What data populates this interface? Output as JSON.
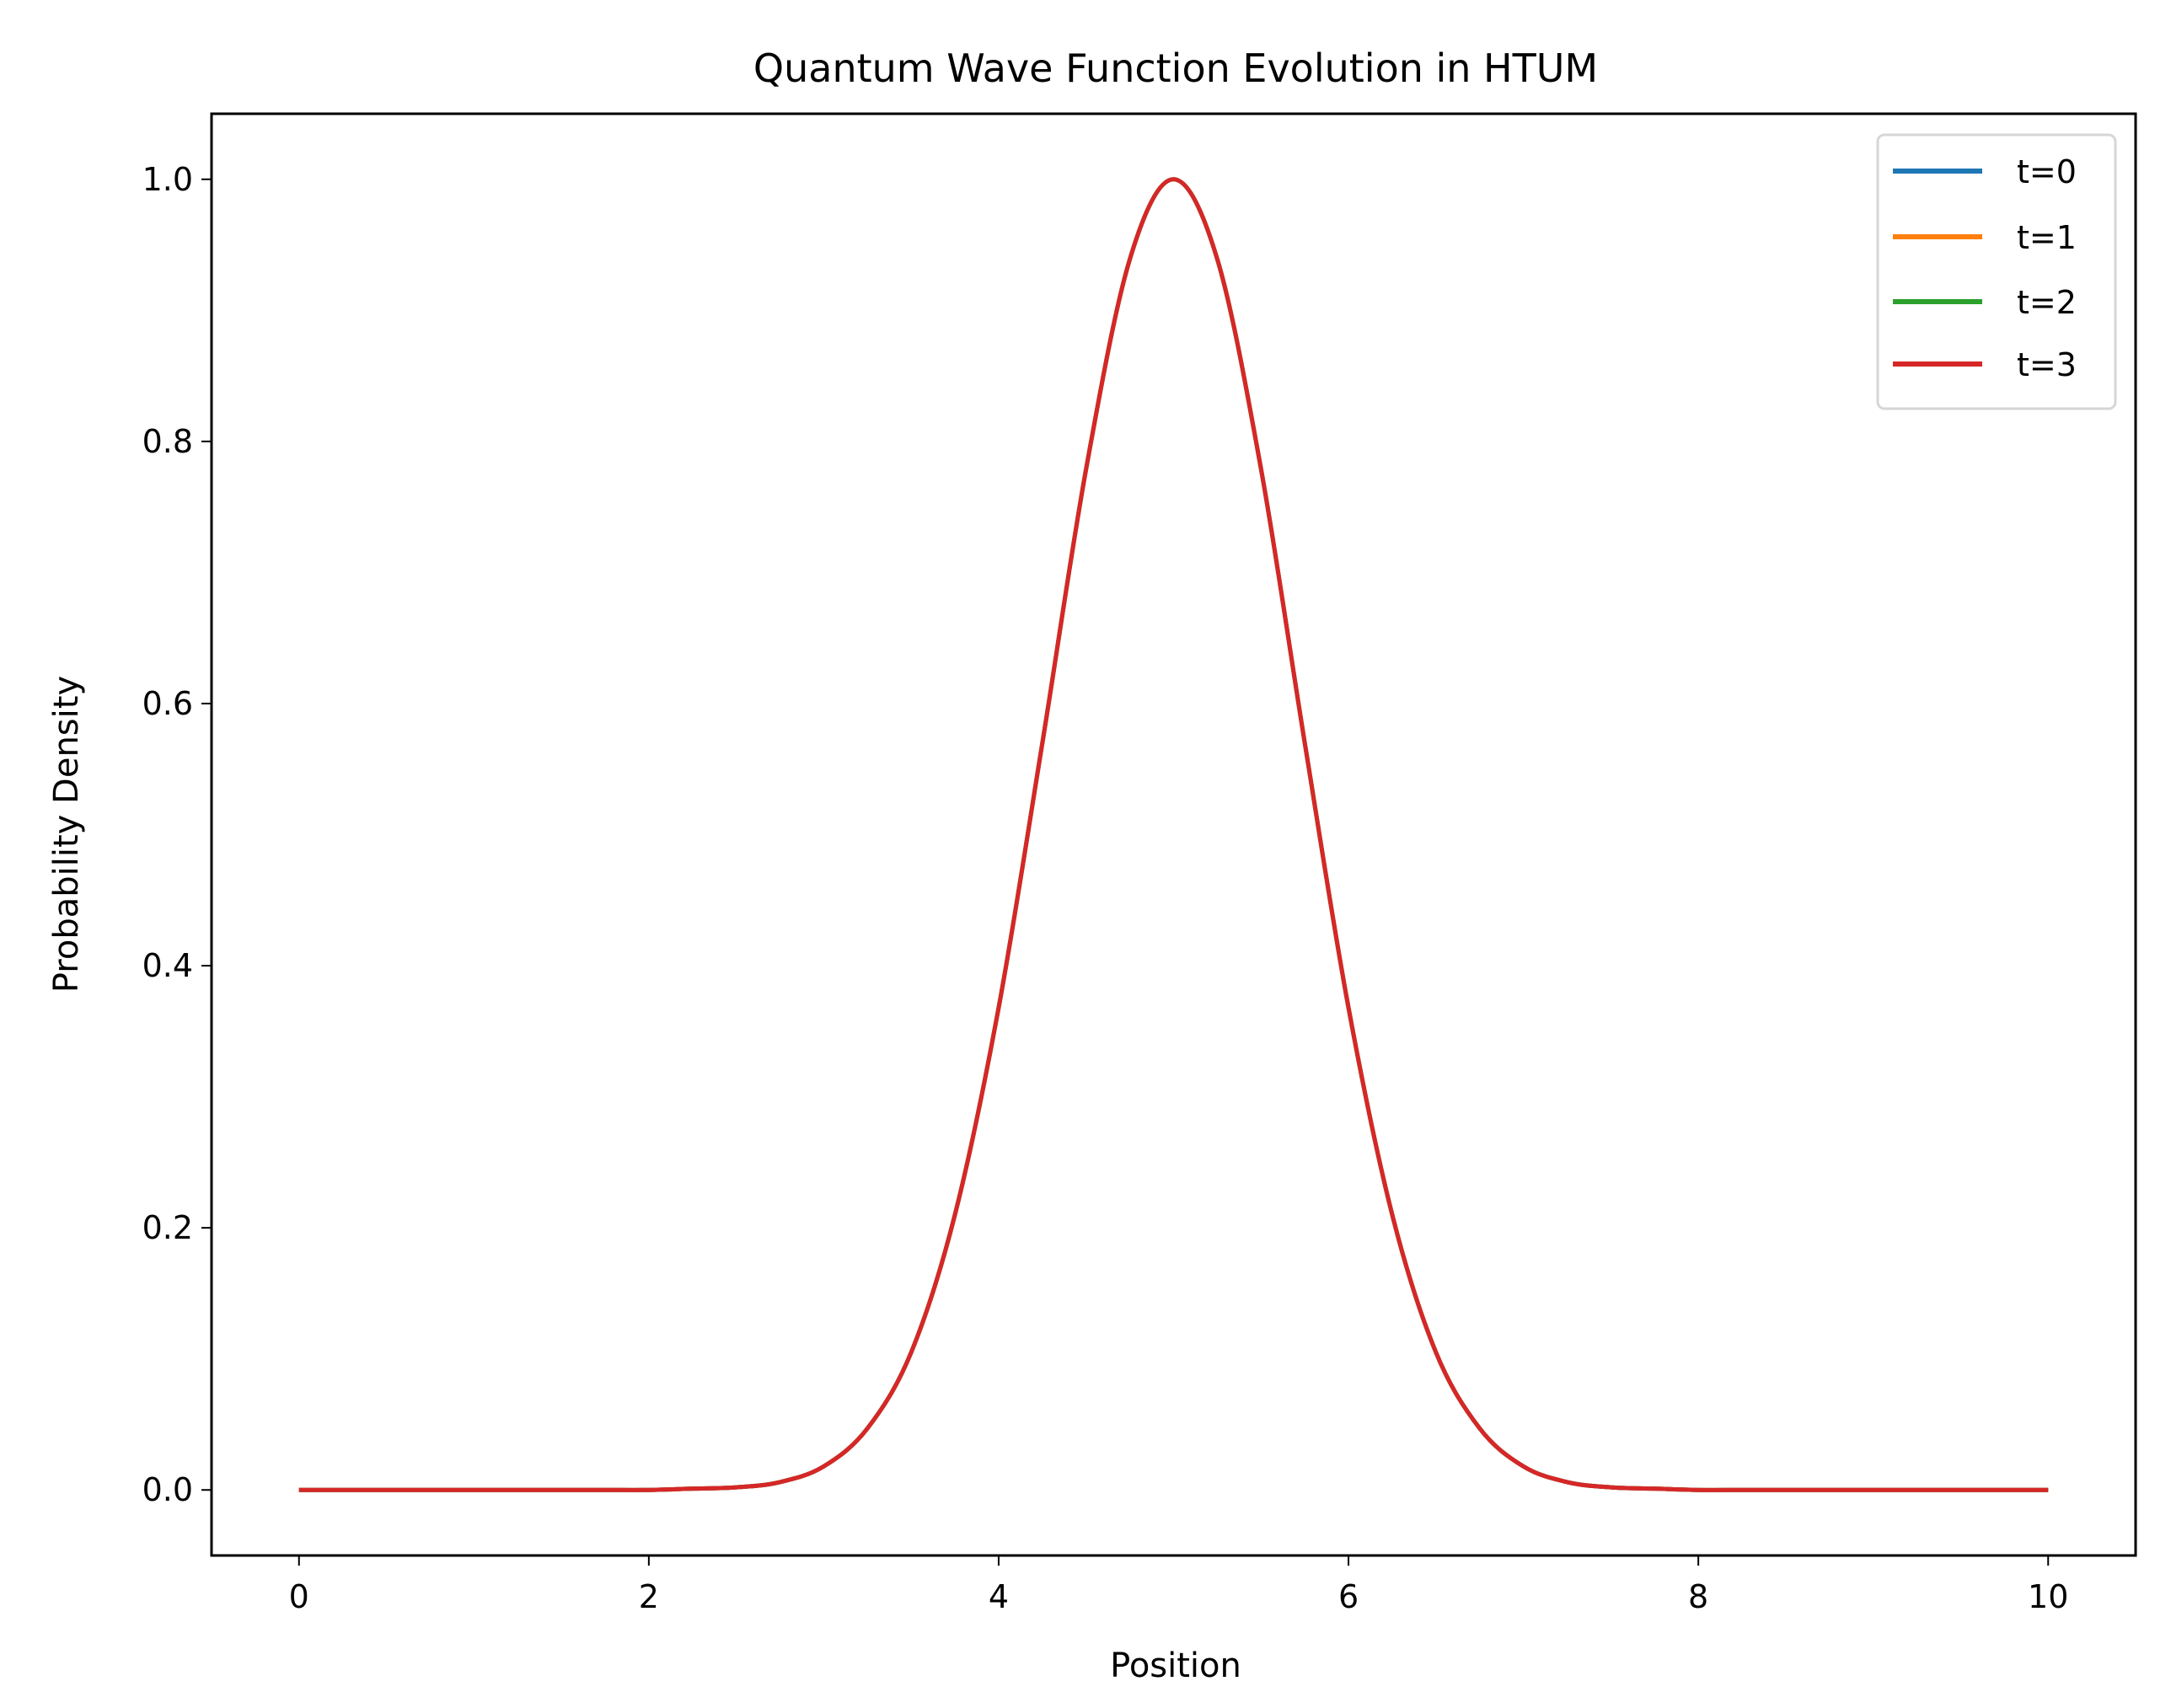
{
  "chart_data": {
    "type": "line",
    "title": "Quantum Wave Function Evolution in HTUM",
    "xlabel": "Position",
    "ylabel": "Probability Density",
    "xlim": [
      -0.5,
      10.5
    ],
    "ylim": [
      -0.05,
      1.05
    ],
    "xticks": [
      "0",
      "2",
      "4",
      "6",
      "8",
      "10"
    ],
    "yticks": [
      "0.0",
      "0.2",
      "0.4",
      "0.6",
      "0.8",
      "1.0"
    ],
    "grid": false,
    "legend_position": "top-right",
    "x": [
      0,
      0.25,
      0.5,
      0.75,
      1,
      1.25,
      1.5,
      1.75,
      2,
      2.25,
      2.5,
      2.75,
      3,
      3.25,
      3.5,
      3.75,
      4,
      4.25,
      4.5,
      4.75,
      5,
      5.25,
      5.5,
      5.75,
      6,
      6.25,
      6.5,
      6.75,
      7,
      7.25,
      7.5,
      7.75,
      8,
      8.25,
      8.5,
      8.75,
      9,
      9.25,
      9.5,
      9.75,
      10
    ],
    "series": [
      {
        "name": "t=0",
        "color": "#1f77b4",
        "values": [
          0,
          0,
          0,
          0,
          0,
          0,
          0,
          0,
          0,
          0.001,
          0.002,
          0.006,
          0.018,
          0.047,
          0.105,
          0.21,
          0.368,
          0.57,
          0.779,
          0.939,
          1,
          0.939,
          0.779,
          0.57,
          0.368,
          0.21,
          0.105,
          0.047,
          0.018,
          0.006,
          0.002,
          0.001,
          0,
          0,
          0,
          0,
          0,
          0,
          0,
          0,
          0
        ]
      },
      {
        "name": "t=1",
        "color": "#ff7f0e",
        "values": [
          0,
          0,
          0,
          0,
          0,
          0,
          0,
          0,
          0,
          0.001,
          0.002,
          0.006,
          0.018,
          0.047,
          0.105,
          0.21,
          0.368,
          0.57,
          0.779,
          0.939,
          1,
          0.939,
          0.779,
          0.57,
          0.368,
          0.21,
          0.105,
          0.047,
          0.018,
          0.006,
          0.002,
          0.001,
          0,
          0,
          0,
          0,
          0,
          0,
          0,
          0,
          0
        ]
      },
      {
        "name": "t=2",
        "color": "#2ca02c",
        "values": [
          0,
          0,
          0,
          0,
          0,
          0,
          0,
          0,
          0,
          0.001,
          0.002,
          0.006,
          0.018,
          0.047,
          0.105,
          0.21,
          0.368,
          0.57,
          0.779,
          0.939,
          1,
          0.939,
          0.779,
          0.57,
          0.368,
          0.21,
          0.105,
          0.047,
          0.018,
          0.006,
          0.002,
          0.001,
          0,
          0,
          0,
          0,
          0,
          0,
          0,
          0,
          0
        ]
      },
      {
        "name": "t=3",
        "color": "#d62728",
        "values": [
          0,
          0,
          0,
          0,
          0,
          0,
          0,
          0,
          0,
          0.001,
          0.002,
          0.006,
          0.018,
          0.047,
          0.105,
          0.21,
          0.368,
          0.57,
          0.779,
          0.939,
          1,
          0.939,
          0.779,
          0.57,
          0.368,
          0.21,
          0.105,
          0.047,
          0.018,
          0.006,
          0.002,
          0.001,
          0,
          0,
          0,
          0,
          0,
          0,
          0,
          0,
          0
        ]
      }
    ]
  }
}
